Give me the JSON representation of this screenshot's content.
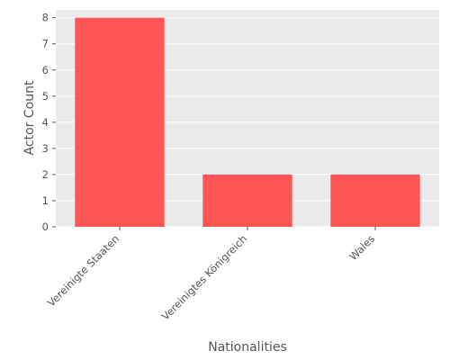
{
  "chart_data": {
    "type": "bar",
    "categories": [
      "Vereinigte Staaten",
      "Vereinigtes Königreich",
      "Wales"
    ],
    "values": [
      8,
      2,
      2
    ],
    "xlabel": "Nationalities",
    "ylabel": "Actor Count",
    "ylim": [
      0,
      8.3
    ],
    "yticks": [
      0,
      1,
      2,
      3,
      4,
      5,
      6,
      7,
      8
    ],
    "grid": true,
    "bar_color": "#ff5555",
    "background_color": "#ebebeb",
    "gridline_color": "#ffffff"
  }
}
